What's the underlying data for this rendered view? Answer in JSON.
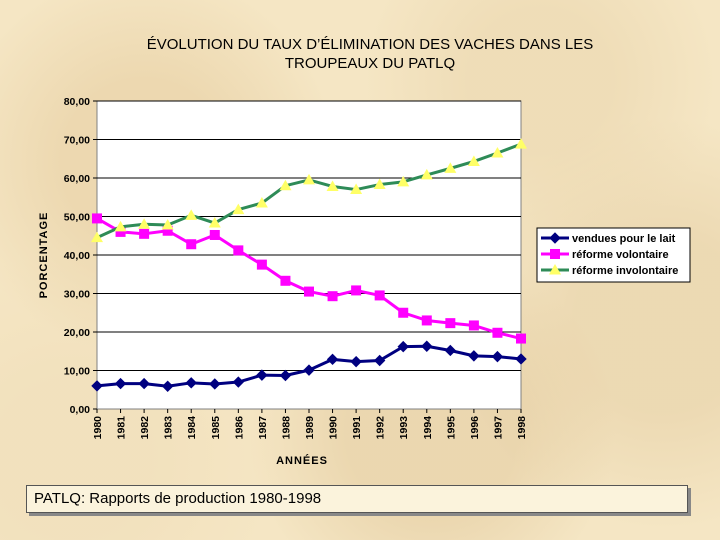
{
  "chart_data": {
    "type": "line",
    "title_line1": "ÉVOLUTION DU TAUX D’ÉLIMINATION DES VACHES DANS LES",
    "title_line2": "TROUPEAUX DU PATLQ",
    "xlabel": "ANNÉES",
    "ylabel": "PORCENTAGE",
    "categories": [
      "1980",
      "1981",
      "1982",
      "1983",
      "1984",
      "1985",
      "1986",
      "1987",
      "1988",
      "1989",
      "1990",
      "1991",
      "1992",
      "1993",
      "1994",
      "1995",
      "1996",
      "1997",
      "1998"
    ],
    "ylim": [
      0,
      80
    ],
    "yticks": [
      "0,00",
      "10,00",
      "20,00",
      "30,00",
      "40,00",
      "50,00",
      "60,00",
      "70,00",
      "80,00"
    ],
    "grid": true,
    "legend_position": "right",
    "series": [
      {
        "name": "vendues  pour le lait",
        "color": "#000080",
        "marker": "diamond",
        "values": [
          6.0,
          6.6,
          6.6,
          5.9,
          6.8,
          6.5,
          7.0,
          8.8,
          8.7,
          10.1,
          12.9,
          12.3,
          12.6,
          16.2,
          16.3,
          15.2,
          13.8,
          13.6,
          13.0
        ]
      },
      {
        "name": "réforme  volontaire",
        "color": "#ff00ff",
        "marker": "square",
        "values": [
          49.5,
          46.0,
          45.5,
          46.3,
          42.8,
          45.2,
          41.2,
          37.5,
          33.3,
          30.5,
          29.3,
          30.8,
          29.5,
          25.0,
          23.0,
          22.3,
          21.7,
          19.8,
          18.3
        ]
      },
      {
        "name": "réforme  involontaire",
        "color": "#ffff66",
        "line_color": "#2e8b57",
        "marker": "triangle",
        "values": [
          44.5,
          47.3,
          48.0,
          47.8,
          50.3,
          48.3,
          51.8,
          53.5,
          58.0,
          59.5,
          57.8,
          57.0,
          58.3,
          59.0,
          60.8,
          62.5,
          64.3,
          66.5,
          68.8
        ]
      }
    ]
  },
  "footer": {
    "source": "PATLQ:  Rapports de production 1980-1998"
  }
}
